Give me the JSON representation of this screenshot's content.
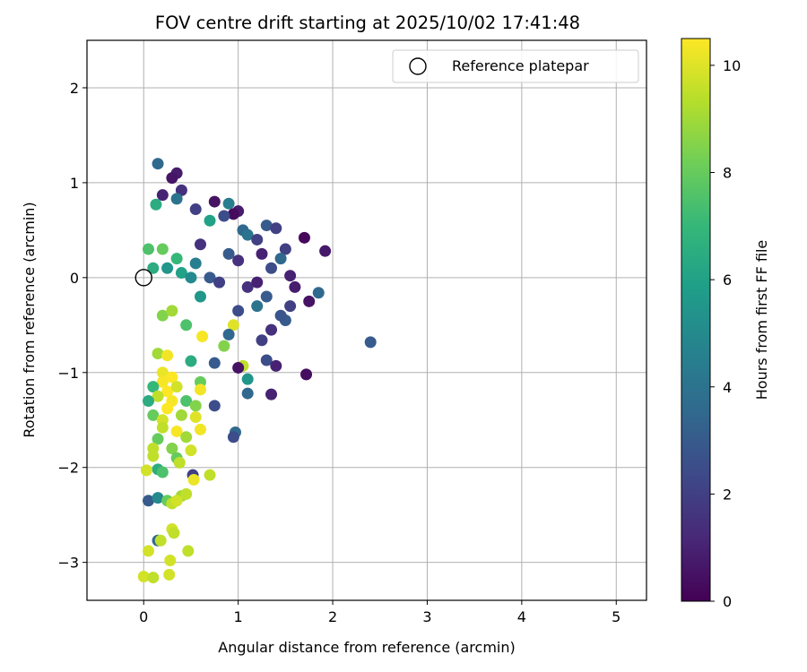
{
  "chart_data": {
    "type": "scatter",
    "title": "FOV centre drift starting at 2025/10/02 17:41:48",
    "xlabel": "Angular distance from reference (arcmin)",
    "ylabel": "Rotation from reference (arcmin)",
    "xlim": [
      -0.6,
      5.32
    ],
    "ylim": [
      -3.4,
      2.5
    ],
    "xticks": [
      "0",
      "1",
      "2",
      "3",
      "4",
      "5"
    ],
    "yticks": [
      "2",
      "1",
      "0",
      "−1",
      "−2",
      "−3"
    ],
    "grid": true,
    "legend": {
      "placement": "top-right",
      "entries": [
        "Reference platepar"
      ]
    },
    "reference_point": {
      "x": 0,
      "y": 0
    },
    "colorbar": {
      "label": "Hours from first FF file",
      "range": [
        0,
        10.5
      ],
      "ticks": [
        "0",
        "2",
        "4",
        "6",
        "8",
        "10"
      ],
      "colormap": "viridis",
      "colors": [
        "#440154",
        "#482878",
        "#3e4989",
        "#31688e",
        "#26828e",
        "#1f9e89",
        "#35b779",
        "#6ece58",
        "#b5de2b",
        "#fde725"
      ]
    },
    "points": [
      [
        0.15,
        1.2,
        3.5
      ],
      [
        0.35,
        1.1,
        0.8
      ],
      [
        0.3,
        1.05,
        0.6
      ],
      [
        0.4,
        0.92,
        1.5
      ],
      [
        0.2,
        0.87,
        1.0
      ],
      [
        0.35,
        0.83,
        4.0
      ],
      [
        0.75,
        0.8,
        0.5
      ],
      [
        0.9,
        0.78,
        4.5
      ],
      [
        0.13,
        0.77,
        6.5
      ],
      [
        0.55,
        0.72,
        2.0
      ],
      [
        1.0,
        0.7,
        0.8
      ],
      [
        0.95,
        0.67,
        0.3
      ],
      [
        0.85,
        0.65,
        2.5
      ],
      [
        0.7,
        0.6,
        6.0
      ],
      [
        1.3,
        0.55,
        3.0
      ],
      [
        1.4,
        0.52,
        2.0
      ],
      [
        1.05,
        0.5,
        3.5
      ],
      [
        1.1,
        0.45,
        4.0
      ],
      [
        1.7,
        0.42,
        0.2
      ],
      [
        1.2,
        0.4,
        2.0
      ],
      [
        0.6,
        0.35,
        1.5
      ],
      [
        1.5,
        0.3,
        2.0
      ],
      [
        1.92,
        0.28,
        0.7
      ],
      [
        0.9,
        0.25,
        3.0
      ],
      [
        1.25,
        0.25,
        1.0
      ],
      [
        1.45,
        0.2,
        3.5
      ],
      [
        1.0,
        0.18,
        1.5
      ],
      [
        0.55,
        0.15,
        4.5
      ],
      [
        1.35,
        0.1,
        2.5
      ],
      [
        1.55,
        0.02,
        1.0
      ],
      [
        0.05,
        0.3,
        7.5
      ],
      [
        0.2,
        0.3,
        8.0
      ],
      [
        0.35,
        0.2,
        7.0
      ],
      [
        0.1,
        0.1,
        6.5
      ],
      [
        0.25,
        0.1,
        5.5
      ],
      [
        0.4,
        0.05,
        6.0
      ],
      [
        0.5,
        0.0,
        5.0
      ],
      [
        0.7,
        0.0,
        3.0
      ],
      [
        0.8,
        -0.05,
        2.0
      ],
      [
        1.1,
        -0.1,
        1.5
      ],
      [
        1.2,
        -0.05,
        1.0
      ],
      [
        1.6,
        -0.1,
        0.8
      ],
      [
        1.85,
        -0.16,
        3.5
      ],
      [
        1.3,
        -0.2,
        3.0
      ],
      [
        0.6,
        -0.2,
        5.5
      ],
      [
        1.55,
        -0.3,
        2.0
      ],
      [
        1.75,
        -0.25,
        0.5
      ],
      [
        1.2,
        -0.3,
        4.0
      ],
      [
        1.0,
        -0.35,
        2.5
      ],
      [
        1.5,
        -0.45,
        3.0
      ],
      [
        1.45,
        -0.4,
        2.8
      ],
      [
        0.2,
        -0.4,
        8.5
      ],
      [
        0.3,
        -0.35,
        9.0
      ],
      [
        0.45,
        -0.5,
        7.5
      ],
      [
        0.95,
        -0.5,
        10.0
      ],
      [
        0.9,
        -0.6,
        3.5
      ],
      [
        1.35,
        -0.55,
        1.5
      ],
      [
        0.62,
        -0.62,
        10.4
      ],
      [
        2.4,
        -0.68,
        3.0
      ],
      [
        1.25,
        -0.66,
        2.0
      ],
      [
        0.85,
        -0.72,
        8.5
      ],
      [
        0.15,
        -0.8,
        9.0
      ],
      [
        0.25,
        -0.82,
        10.3
      ],
      [
        0.5,
        -0.88,
        6.5
      ],
      [
        0.75,
        -0.9,
        3.0
      ],
      [
        1.3,
        -0.87,
        2.5
      ],
      [
        1.4,
        -0.93,
        1.0
      ],
      [
        1.05,
        -0.93,
        9.5
      ],
      [
        1.0,
        -0.95,
        0.5
      ],
      [
        1.72,
        -1.02,
        0.4
      ],
      [
        0.2,
        -1.0,
        10.2
      ],
      [
        0.3,
        -1.05,
        10.5
      ],
      [
        1.1,
        -1.07,
        5.5
      ],
      [
        0.6,
        -1.1,
        8.0
      ],
      [
        0.2,
        -1.1,
        10.4
      ],
      [
        0.1,
        -1.15,
        7.0
      ],
      [
        0.25,
        -1.2,
        10.5
      ],
      [
        0.35,
        -1.15,
        9.8
      ],
      [
        0.6,
        -1.18,
        10.3
      ],
      [
        1.1,
        -1.22,
        3.5
      ],
      [
        1.35,
        -1.23,
        1.0
      ],
      [
        0.15,
        -1.25,
        9.5
      ],
      [
        0.3,
        -1.3,
        10.4
      ],
      [
        0.45,
        -1.3,
        7.5
      ],
      [
        0.05,
        -1.3,
        6.5
      ],
      [
        0.25,
        -1.38,
        10.5
      ],
      [
        0.55,
        -1.35,
        8.5
      ],
      [
        0.75,
        -1.35,
        2.5
      ],
      [
        0.1,
        -1.45,
        8.0
      ],
      [
        0.2,
        -1.5,
        9.8
      ],
      [
        0.4,
        -1.45,
        9.0
      ],
      [
        0.55,
        -1.47,
        10.0
      ],
      [
        0.6,
        -1.6,
        10.3
      ],
      [
        0.2,
        -1.58,
        9.5
      ],
      [
        0.35,
        -1.62,
        10.4
      ],
      [
        0.15,
        -1.7,
        8.0
      ],
      [
        0.45,
        -1.68,
        9.0
      ],
      [
        0.97,
        -1.63,
        3.5
      ],
      [
        0.95,
        -1.68,
        2.5
      ],
      [
        0.1,
        -1.8,
        9.5
      ],
      [
        0.3,
        -1.8,
        8.5
      ],
      [
        0.5,
        -1.82,
        9.8
      ],
      [
        0.35,
        -1.9,
        8.0
      ],
      [
        0.1,
        -1.88,
        9.5
      ],
      [
        0.38,
        -1.95,
        9.5
      ],
      [
        0.15,
        -2.02,
        6.5
      ],
      [
        0.03,
        -2.03,
        9.8
      ],
      [
        0.2,
        -2.05,
        7.5
      ],
      [
        0.52,
        -2.08,
        2.0
      ],
      [
        0.7,
        -2.08,
        9.5
      ],
      [
        0.53,
        -2.13,
        10.2
      ],
      [
        0.05,
        -2.35,
        3.0
      ],
      [
        0.15,
        -2.32,
        5.0
      ],
      [
        0.25,
        -2.35,
        8.0
      ],
      [
        0.3,
        -2.38,
        9.5
      ],
      [
        0.4,
        -2.3,
        9.0
      ],
      [
        0.45,
        -2.28,
        9.5
      ],
      [
        0.35,
        -2.35,
        9.8
      ],
      [
        0.3,
        -2.65,
        9.8
      ],
      [
        0.32,
        -2.69,
        9.5
      ],
      [
        0.15,
        -2.77,
        3.5
      ],
      [
        0.18,
        -2.77,
        9.5
      ],
      [
        0.05,
        -2.88,
        9.8
      ],
      [
        0.47,
        -2.88,
        9.5
      ],
      [
        0.28,
        -2.98,
        9.8
      ],
      [
        0.0,
        -3.15,
        9.8
      ],
      [
        0.1,
        -3.16,
        9.5
      ],
      [
        0.27,
        -3.13,
        9.8
      ]
    ]
  }
}
